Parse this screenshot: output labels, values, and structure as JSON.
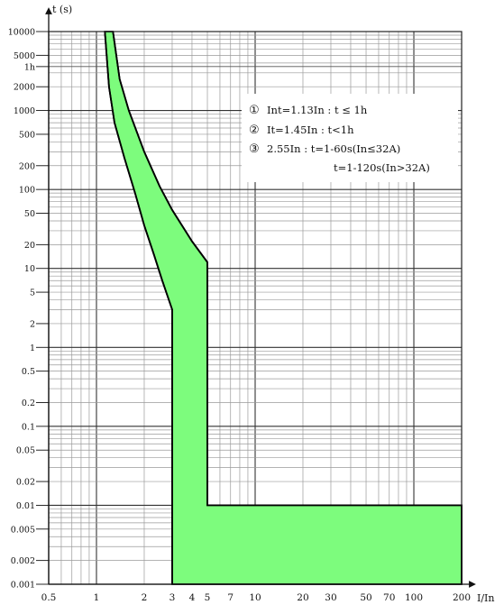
{
  "chart_data": {
    "type": "area",
    "title": "",
    "xlabel": "I/In",
    "ylabel": "t (s)",
    "x_scale": "log",
    "y_scale": "log",
    "xlim": [
      0.5,
      200
    ],
    "ylim": [
      0.001,
      10000
    ],
    "grid": true,
    "x_ticks": [
      {
        "value": 0.5,
        "label": "0.5"
      },
      {
        "value": 1,
        "label": "1"
      },
      {
        "value": 2,
        "label": "2"
      },
      {
        "value": 3,
        "label": "3"
      },
      {
        "value": 4,
        "label": "4"
      },
      {
        "value": 5,
        "label": "5"
      },
      {
        "value": 7,
        "label": "7"
      },
      {
        "value": 10,
        "label": "10"
      },
      {
        "value": 20,
        "label": "20"
      },
      {
        "value": 30,
        "label": "30"
      },
      {
        "value": 50,
        "label": "50"
      },
      {
        "value": 70,
        "label": "70"
      },
      {
        "value": 100,
        "label": "100"
      },
      {
        "value": 200,
        "label": "200"
      }
    ],
    "y_ticks": [
      {
        "value": 10000,
        "label": "10000"
      },
      {
        "value": 5000,
        "label": "5000"
      },
      {
        "value": 3600,
        "label": "1h"
      },
      {
        "value": 2000,
        "label": "2000"
      },
      {
        "value": 1000,
        "label": "1000"
      },
      {
        "value": 500,
        "label": "500"
      },
      {
        "value": 200,
        "label": "200"
      },
      {
        "value": 100,
        "label": "100"
      },
      {
        "value": 50,
        "label": "50"
      },
      {
        "value": 20,
        "label": "20"
      },
      {
        "value": 10,
        "label": "10"
      },
      {
        "value": 5,
        "label": "5"
      },
      {
        "value": 2,
        "label": "2"
      },
      {
        "value": 1,
        "label": "1"
      },
      {
        "value": 0.5,
        "label": "0.5"
      },
      {
        "value": 0.2,
        "label": "0.2"
      },
      {
        "value": 0.1,
        "label": "0.1"
      },
      {
        "value": 0.05,
        "label": "0.05"
      },
      {
        "value": 0.02,
        "label": "0.02"
      },
      {
        "value": 0.01,
        "label": "0.01"
      },
      {
        "value": 0.005,
        "label": "0.005"
      },
      {
        "value": 0.002,
        "label": "0.002"
      },
      {
        "value": 0.001,
        "label": "0.001"
      }
    ],
    "fill_color": "#7dfc7d",
    "band": {
      "lower_boundary": [
        {
          "x": 1.13,
          "y": 10000
        },
        {
          "x": 1.2,
          "y": 2000
        },
        {
          "x": 1.3,
          "y": 700
        },
        {
          "x": 1.5,
          "y": 250
        },
        {
          "x": 1.75,
          "y": 90
        },
        {
          "x": 2.0,
          "y": 35
        },
        {
          "x": 2.3,
          "y": 15
        },
        {
          "x": 2.6,
          "y": 7
        },
        {
          "x": 3.0,
          "y": 3
        },
        {
          "x": 3.0,
          "y": 0.001
        }
      ],
      "upper_boundary": [
        {
          "x": 1.27,
          "y": 10000
        },
        {
          "x": 1.4,
          "y": 2500
        },
        {
          "x": 1.6,
          "y": 1000
        },
        {
          "x": 2.0,
          "y": 300
        },
        {
          "x": 2.5,
          "y": 110
        },
        {
          "x": 3.0,
          "y": 55
        },
        {
          "x": 4.0,
          "y": 22
        },
        {
          "x": 5.0,
          "y": 12
        },
        {
          "x": 5.0,
          "y": 0.01
        },
        {
          "x": 200,
          "y": 0.01
        },
        {
          "x": 200,
          "y": 0.001
        }
      ]
    },
    "annotations": [
      {
        "marker": "①",
        "text": "Int=1.13In : t ≤ 1h"
      },
      {
        "marker": "②",
        "text": "It=1.45In : t<1h"
      },
      {
        "marker": "③",
        "text": "2.55In : t=1-60s(In≤32A)"
      },
      {
        "marker": "",
        "text": "t=1-120s(In>32A)"
      }
    ]
  }
}
